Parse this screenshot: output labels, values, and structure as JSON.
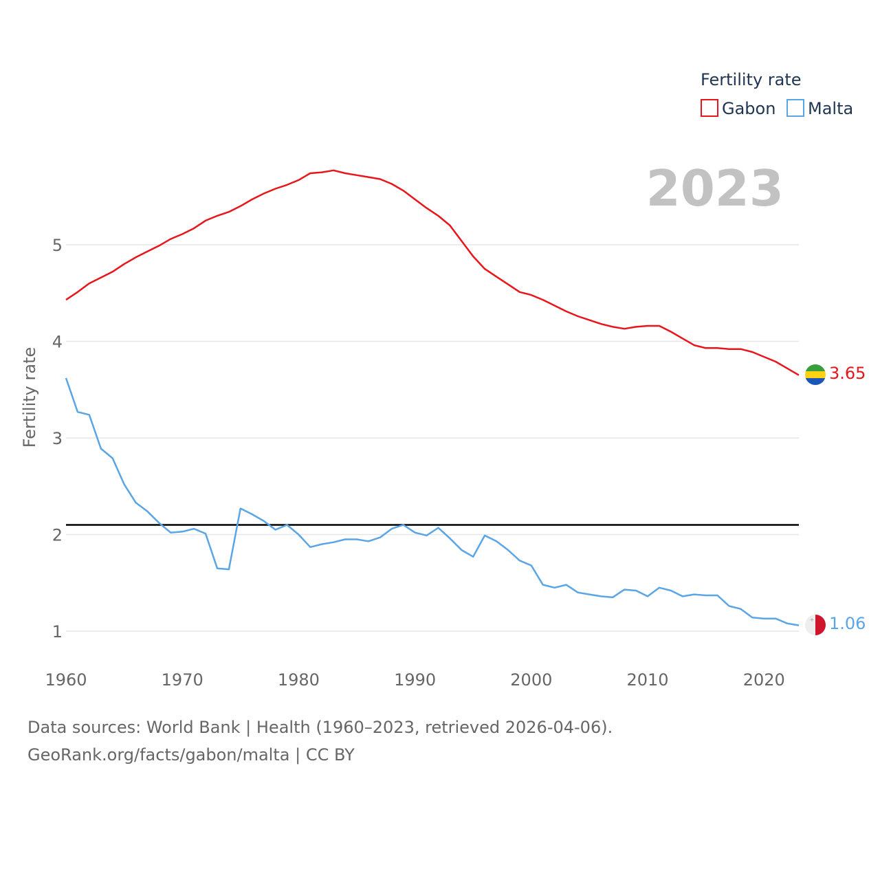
{
  "chart_data": {
    "type": "line",
    "year_badge": "2023",
    "ylabel": "Fertility rate",
    "xlabel": "",
    "xlim": [
      1960,
      2023
    ],
    "ylim": [
      0.75,
      5.8
    ],
    "y_ticks": [
      1,
      2,
      3,
      4,
      5
    ],
    "x_ticks": [
      1960,
      1970,
      1980,
      1990,
      2000,
      2010,
      2020
    ],
    "grid": true,
    "legend": {
      "title": "Fertility rate",
      "placement": "top-right",
      "entries": [
        "Gabon",
        "Malta"
      ]
    },
    "reference_line": {
      "value": 2.1,
      "color": "#000000"
    },
    "series": [
      {
        "name": "Gabon",
        "color": "#e8161a",
        "flag": "gabon-flag",
        "end_label": "3.65",
        "x": [
          1960,
          1961,
          1962,
          1963,
          1964,
          1965,
          1966,
          1967,
          1968,
          1969,
          1970,
          1971,
          1972,
          1973,
          1974,
          1975,
          1976,
          1977,
          1978,
          1979,
          1980,
          1981,
          1982,
          1983,
          1984,
          1985,
          1986,
          1987,
          1988,
          1989,
          1990,
          1991,
          1992,
          1993,
          1994,
          1995,
          1996,
          1997,
          1998,
          1999,
          2000,
          2001,
          2002,
          2003,
          2004,
          2005,
          2006,
          2007,
          2008,
          2009,
          2010,
          2011,
          2012,
          2013,
          2014,
          2015,
          2016,
          2017,
          2018,
          2019,
          2020,
          2021,
          2022,
          2023
        ],
        "values": [
          4.43,
          4.51,
          4.6,
          4.66,
          4.72,
          4.8,
          4.87,
          4.93,
          4.99,
          5.06,
          5.11,
          5.17,
          5.25,
          5.3,
          5.34,
          5.4,
          5.47,
          5.53,
          5.58,
          5.62,
          5.67,
          5.74,
          5.75,
          5.77,
          5.74,
          5.72,
          5.7,
          5.68,
          5.63,
          5.56,
          5.47,
          5.38,
          5.3,
          5.2,
          5.04,
          4.88,
          4.75,
          4.67,
          4.59,
          4.51,
          4.48,
          4.43,
          4.37,
          4.31,
          4.26,
          4.22,
          4.18,
          4.15,
          4.13,
          4.15,
          4.16,
          4.16,
          4.1,
          4.03,
          3.96,
          3.93,
          3.93,
          3.92,
          3.92,
          3.89,
          3.84,
          3.79,
          3.72,
          3.65
        ]
      },
      {
        "name": "Malta",
        "color": "#5aa5e6",
        "flag": "malta-flag",
        "end_label": "1.06",
        "x": [
          1960,
          1961,
          1962,
          1963,
          1964,
          1965,
          1966,
          1967,
          1968,
          1969,
          1970,
          1971,
          1972,
          1973,
          1974,
          1975,
          1976,
          1977,
          1978,
          1979,
          1980,
          1981,
          1982,
          1983,
          1984,
          1985,
          1986,
          1987,
          1988,
          1989,
          1990,
          1991,
          1992,
          1993,
          1994,
          1995,
          1996,
          1997,
          1998,
          1999,
          2000,
          2001,
          2002,
          2003,
          2004,
          2005,
          2006,
          2007,
          2008,
          2009,
          2010,
          2011,
          2012,
          2013,
          2014,
          2015,
          2016,
          2017,
          2018,
          2019,
          2020,
          2021,
          2022,
          2023
        ],
        "values": [
          3.62,
          3.27,
          3.24,
          2.89,
          2.79,
          2.52,
          2.33,
          2.24,
          2.12,
          2.02,
          2.03,
          2.06,
          2.01,
          1.65,
          1.64,
          2.27,
          2.21,
          2.14,
          2.05,
          2.1,
          2.0,
          1.87,
          1.9,
          1.92,
          1.95,
          1.95,
          1.93,
          1.97,
          2.06,
          2.1,
          2.02,
          1.99,
          2.07,
          1.96,
          1.84,
          1.77,
          1.99,
          1.93,
          1.84,
          1.73,
          1.68,
          1.48,
          1.45,
          1.48,
          1.4,
          1.38,
          1.36,
          1.35,
          1.43,
          1.42,
          1.36,
          1.45,
          1.42,
          1.36,
          1.38,
          1.37,
          1.37,
          1.26,
          1.23,
          1.14,
          1.13,
          1.13,
          1.08,
          1.06
        ]
      }
    ]
  },
  "footer": {
    "source_line_1": "Data sources: World Bank | Health (1960–2023, retrieved 2026-04-06).",
    "source_line_2": "GeoRank.org/facts/gabon/malta | CC BY"
  },
  "colors": {
    "gabon": "#e8161a",
    "malta": "#5aa5e6",
    "grid": "#e6e6e6",
    "reference": "#000000",
    "year_badge": "#c2c2c2",
    "axis_text": "#666666",
    "legend_title": "#1f3552"
  }
}
